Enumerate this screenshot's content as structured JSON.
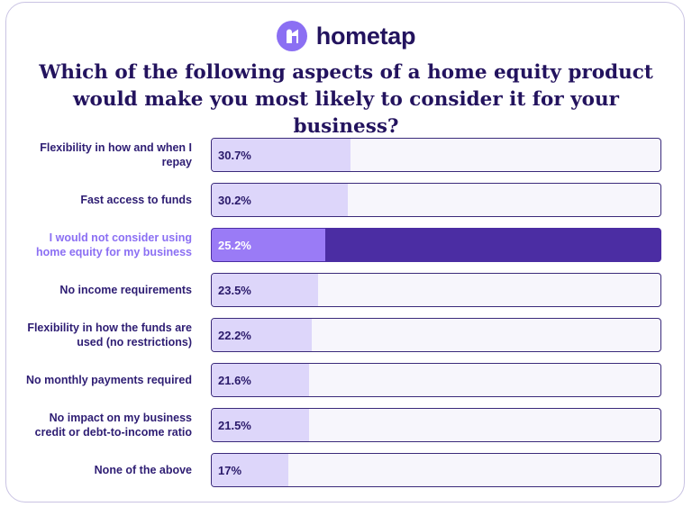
{
  "brand": {
    "name": "hometap",
    "icon": "hometap-logo-icon",
    "color": "#8b6ff3"
  },
  "chart_data": {
    "type": "bar",
    "orientation": "horizontal",
    "title": "Which of the following aspects of a home equity product would make you most likely to consider it for your business?",
    "xlim": [
      0,
      100
    ],
    "categories": [
      "Flexibility in how and when I repay",
      "Fast access to funds",
      "I would not consider using home equity for my business",
      "No income requirements",
      "Flexibility in how the funds are used (no restrictions)",
      "No monthly payments required",
      "No impact on my business credit or debt-to-income ratio",
      "None of the above"
    ],
    "values": [
      30.7,
      30.2,
      25.2,
      23.5,
      22.2,
      21.6,
      21.5,
      17
    ],
    "value_labels": [
      "30.7%",
      "30.2%",
      "25.2%",
      "23.5%",
      "22.2%",
      "21.6%",
      "21.5%",
      "17%"
    ],
    "highlight_index": 2,
    "colors": {
      "fill": "#ddd6fa",
      "track": "#f7f6fc",
      "highlight_fill": "#9a7bf6",
      "highlight_track": "#4b2da3",
      "label": "#2e1d73",
      "highlight_label": "#8b6ff3"
    }
  }
}
